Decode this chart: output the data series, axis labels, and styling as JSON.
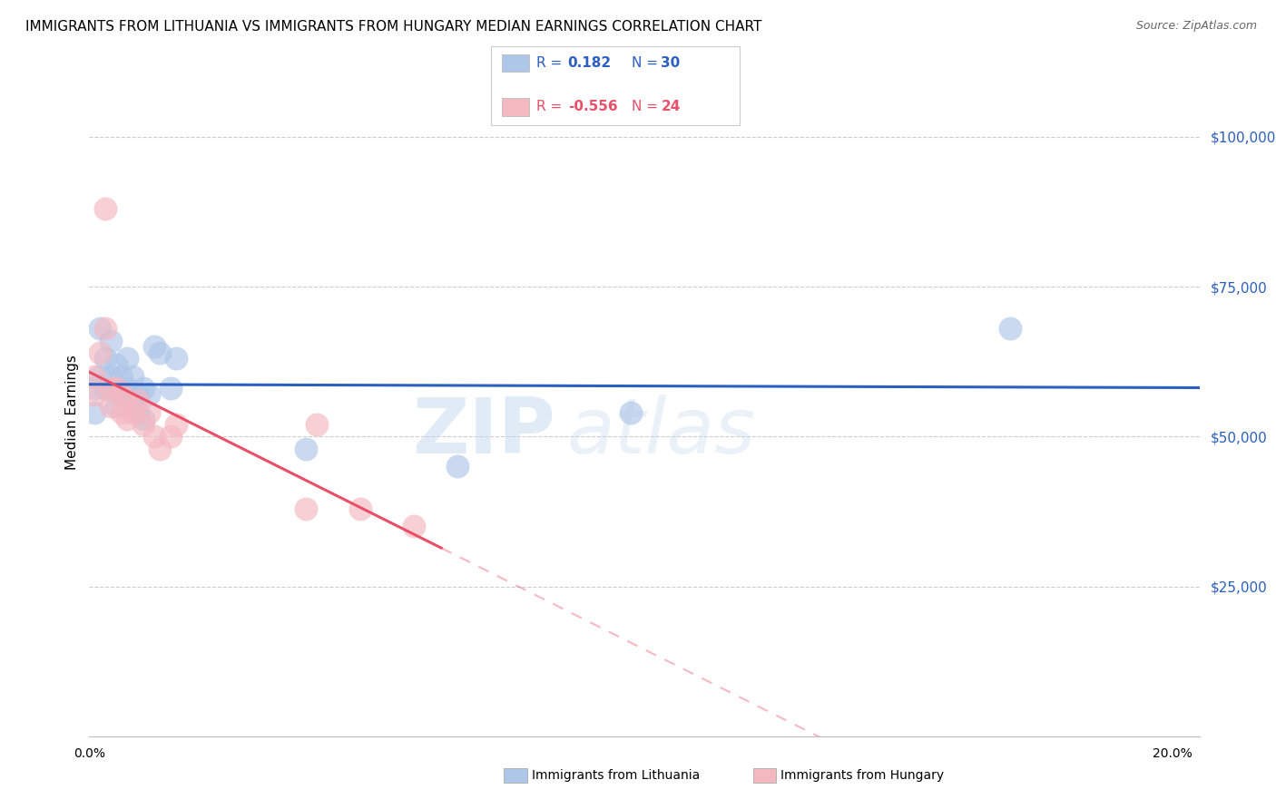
{
  "title": "IMMIGRANTS FROM LITHUANIA VS IMMIGRANTS FROM HUNGARY MEDIAN EARNINGS CORRELATION CHART",
  "source": "Source: ZipAtlas.com",
  "ylabel": "Median Earnings",
  "y_tick_labels": [
    "$25,000",
    "$50,000",
    "$75,000",
    "$100,000"
  ],
  "y_tick_values": [
    25000,
    50000,
    75000,
    100000
  ],
  "ylim": [
    0,
    108000
  ],
  "xlim": [
    0.0,
    0.205
  ],
  "r_lithuania": 0.182,
  "n_lithuania": 30,
  "r_hungary": -0.556,
  "n_hungary": 24,
  "legend_labels": [
    "Immigrants from Lithuania",
    "Immigrants from Hungary"
  ],
  "color_lithuania": "#aec6e8",
  "color_hungary": "#f4b8c1",
  "line_color_lithuania": "#2b5fc0",
  "line_color_hungary": "#e8506a",
  "watermark_zip": "ZIP",
  "watermark_atlas": "atlas",
  "title_fontsize": 11,
  "lithuania_x": [
    0.001,
    0.001,
    0.002,
    0.002,
    0.003,
    0.003,
    0.004,
    0.004,
    0.005,
    0.005,
    0.005,
    0.006,
    0.006,
    0.007,
    0.007,
    0.008,
    0.008,
    0.009,
    0.009,
    0.01,
    0.01,
    0.011,
    0.012,
    0.013,
    0.015,
    0.016,
    0.04,
    0.068,
    0.1,
    0.17
  ],
  "lithuania_y": [
    58000,
    54000,
    68000,
    60000,
    63000,
    58000,
    66000,
    60000,
    62000,
    58000,
    55000,
    60000,
    57000,
    63000,
    58000,
    60000,
    56000,
    57000,
    54000,
    58000,
    53000,
    57000,
    65000,
    64000,
    58000,
    63000,
    48000,
    45000,
    54000,
    68000
  ],
  "hungary_x": [
    0.001,
    0.001,
    0.002,
    0.003,
    0.003,
    0.004,
    0.004,
    0.005,
    0.006,
    0.006,
    0.007,
    0.007,
    0.008,
    0.009,
    0.01,
    0.011,
    0.012,
    0.013,
    0.015,
    0.016,
    0.04,
    0.042,
    0.05,
    0.06
  ],
  "hungary_y": [
    60000,
    57000,
    64000,
    88000,
    68000,
    58000,
    55000,
    58000,
    57000,
    54000,
    56000,
    53000,
    54000,
    56000,
    52000,
    54000,
    50000,
    48000,
    50000,
    52000,
    38000,
    52000,
    38000,
    35000
  ]
}
